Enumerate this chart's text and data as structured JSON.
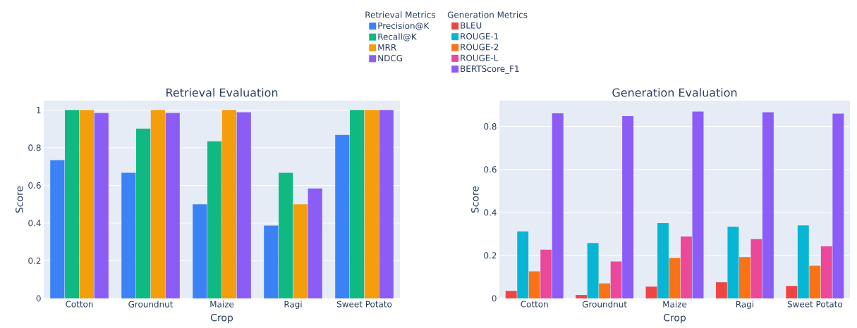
{
  "chart_data": [
    {
      "type": "bar",
      "title": "Retrieval Evaluation",
      "xlabel": "Crop",
      "ylabel": "Score",
      "legend_title": "Retrieval Metrics",
      "legend": "top",
      "grid": "y",
      "categories": [
        "Cotton",
        "Groundnut",
        "Maize",
        "Ragi",
        "Sweet Potato"
      ],
      "ylim": [
        0,
        1.05
      ],
      "yticks": [
        0,
        0.2,
        0.4,
        0.6,
        0.8,
        1
      ],
      "series": [
        {
          "name": "Precision@K",
          "color": "#3b82f6",
          "values": [
            0.734,
            0.667,
            0.5,
            0.387,
            0.868
          ]
        },
        {
          "name": "Recall@K",
          "color": "#10b981",
          "values": [
            1,
            0.901,
            0.834,
            0.667,
            1
          ]
        },
        {
          "name": "MRR",
          "color": "#f59e0b",
          "values": [
            1,
            1,
            1,
            0.5,
            1
          ]
        },
        {
          "name": "NDCG",
          "color": "#8b5cf6",
          "values": [
            0.985,
            0.985,
            0.988,
            0.584,
            1
          ]
        }
      ]
    },
    {
      "type": "bar",
      "title": "Generation Evaluation",
      "xlabel": "Crop",
      "ylabel": "Score",
      "legend_title": "Generation Metrics",
      "legend": "top",
      "grid": "y",
      "categories": [
        "Cotton",
        "Groundnut",
        "Maize",
        "Ragi",
        "Sweet Potato"
      ],
      "ylim": [
        0,
        0.92
      ],
      "yticks": [
        0,
        0.2,
        0.4,
        0.6,
        0.8
      ],
      "series": [
        {
          "name": "BLEU",
          "color": "#ef4444",
          "values": [
            0.035,
            0.016,
            0.055,
            0.075,
            0.058
          ]
        },
        {
          "name": "ROUGE-1",
          "color": "#06b6d4",
          "values": [
            0.312,
            0.258,
            0.35,
            0.334,
            0.34
          ]
        },
        {
          "name": "ROUGE-2",
          "color": "#f97316",
          "values": [
            0.126,
            0.07,
            0.188,
            0.192,
            0.152
          ]
        },
        {
          "name": "ROUGE-L",
          "color": "#ec4899",
          "values": [
            0.227,
            0.172,
            0.288,
            0.276,
            0.242
          ]
        },
        {
          "name": "BERTScore_F1",
          "color": "#8b5cf6",
          "values": [
            0.861,
            0.848,
            0.869,
            0.866,
            0.859
          ]
        }
      ]
    }
  ]
}
